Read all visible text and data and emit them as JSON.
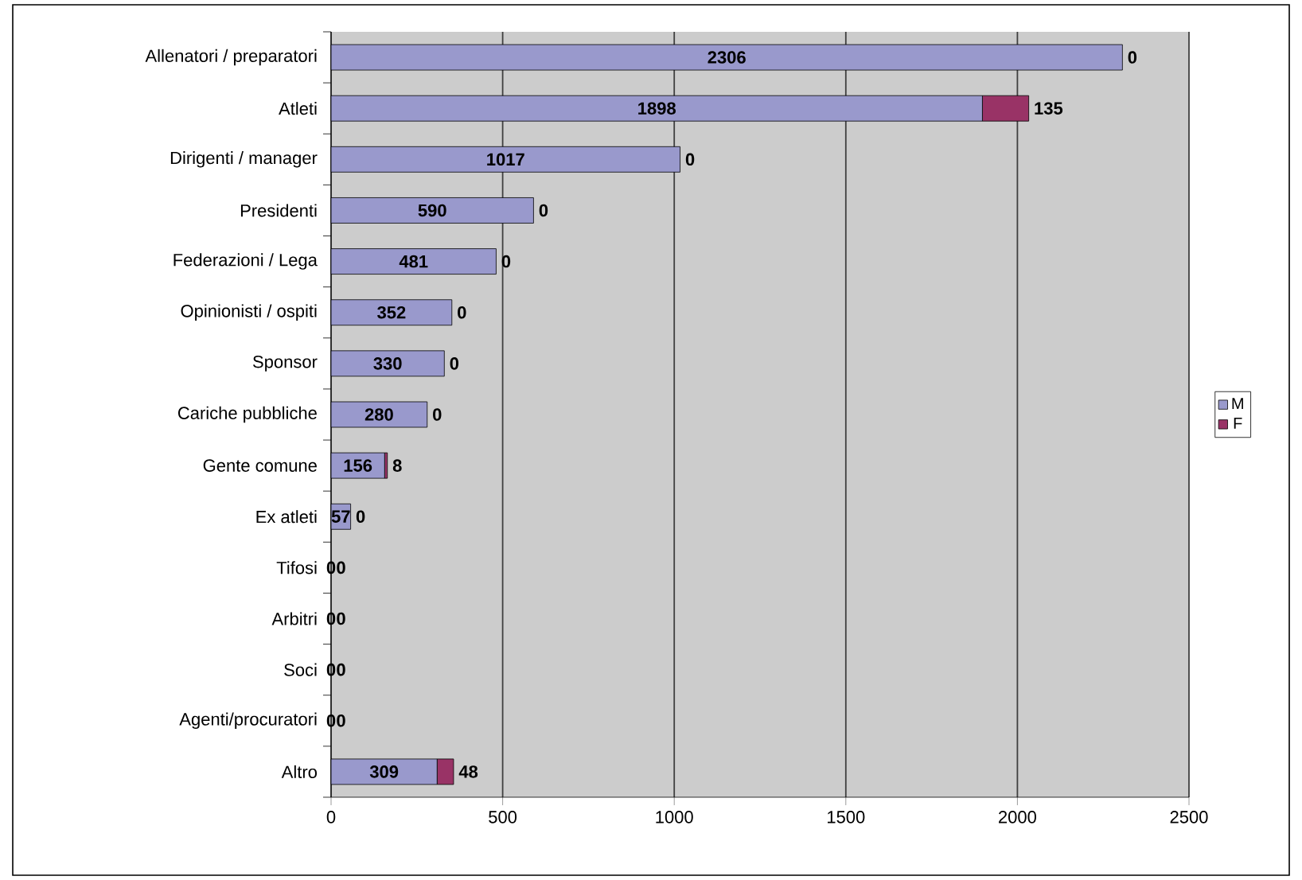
{
  "chart_data": {
    "type": "bar",
    "orientation": "horizontal",
    "stacked": true,
    "categories": [
      "Allenatori / preparatori",
      "Atleti",
      "Dirigenti / manager",
      "Presidenti",
      "Federazioni / Lega",
      "Opinionisti / ospiti",
      "Sponsor",
      "Cariche pubbliche",
      "Gente comune",
      "Ex atleti",
      "Tifosi",
      "Arbitri",
      "Soci",
      "Agenti/procuratori",
      "Altro"
    ],
    "series": [
      {
        "name": "M",
        "color": "#9999cc",
        "values": [
          2306,
          1898,
          1017,
          590,
          481,
          352,
          330,
          280,
          156,
          57,
          0,
          0,
          0,
          0,
          309
        ]
      },
      {
        "name": "F",
        "color": "#993366",
        "values": [
          0,
          135,
          0,
          0,
          0,
          0,
          0,
          0,
          8,
          0,
          0,
          0,
          0,
          0,
          48
        ]
      }
    ],
    "xlim": [
      0,
      2500
    ],
    "xticks": [
      0,
      500,
      1000,
      1500,
      2000,
      2500
    ],
    "grid": "x",
    "legend": "right",
    "data_labels": true
  }
}
